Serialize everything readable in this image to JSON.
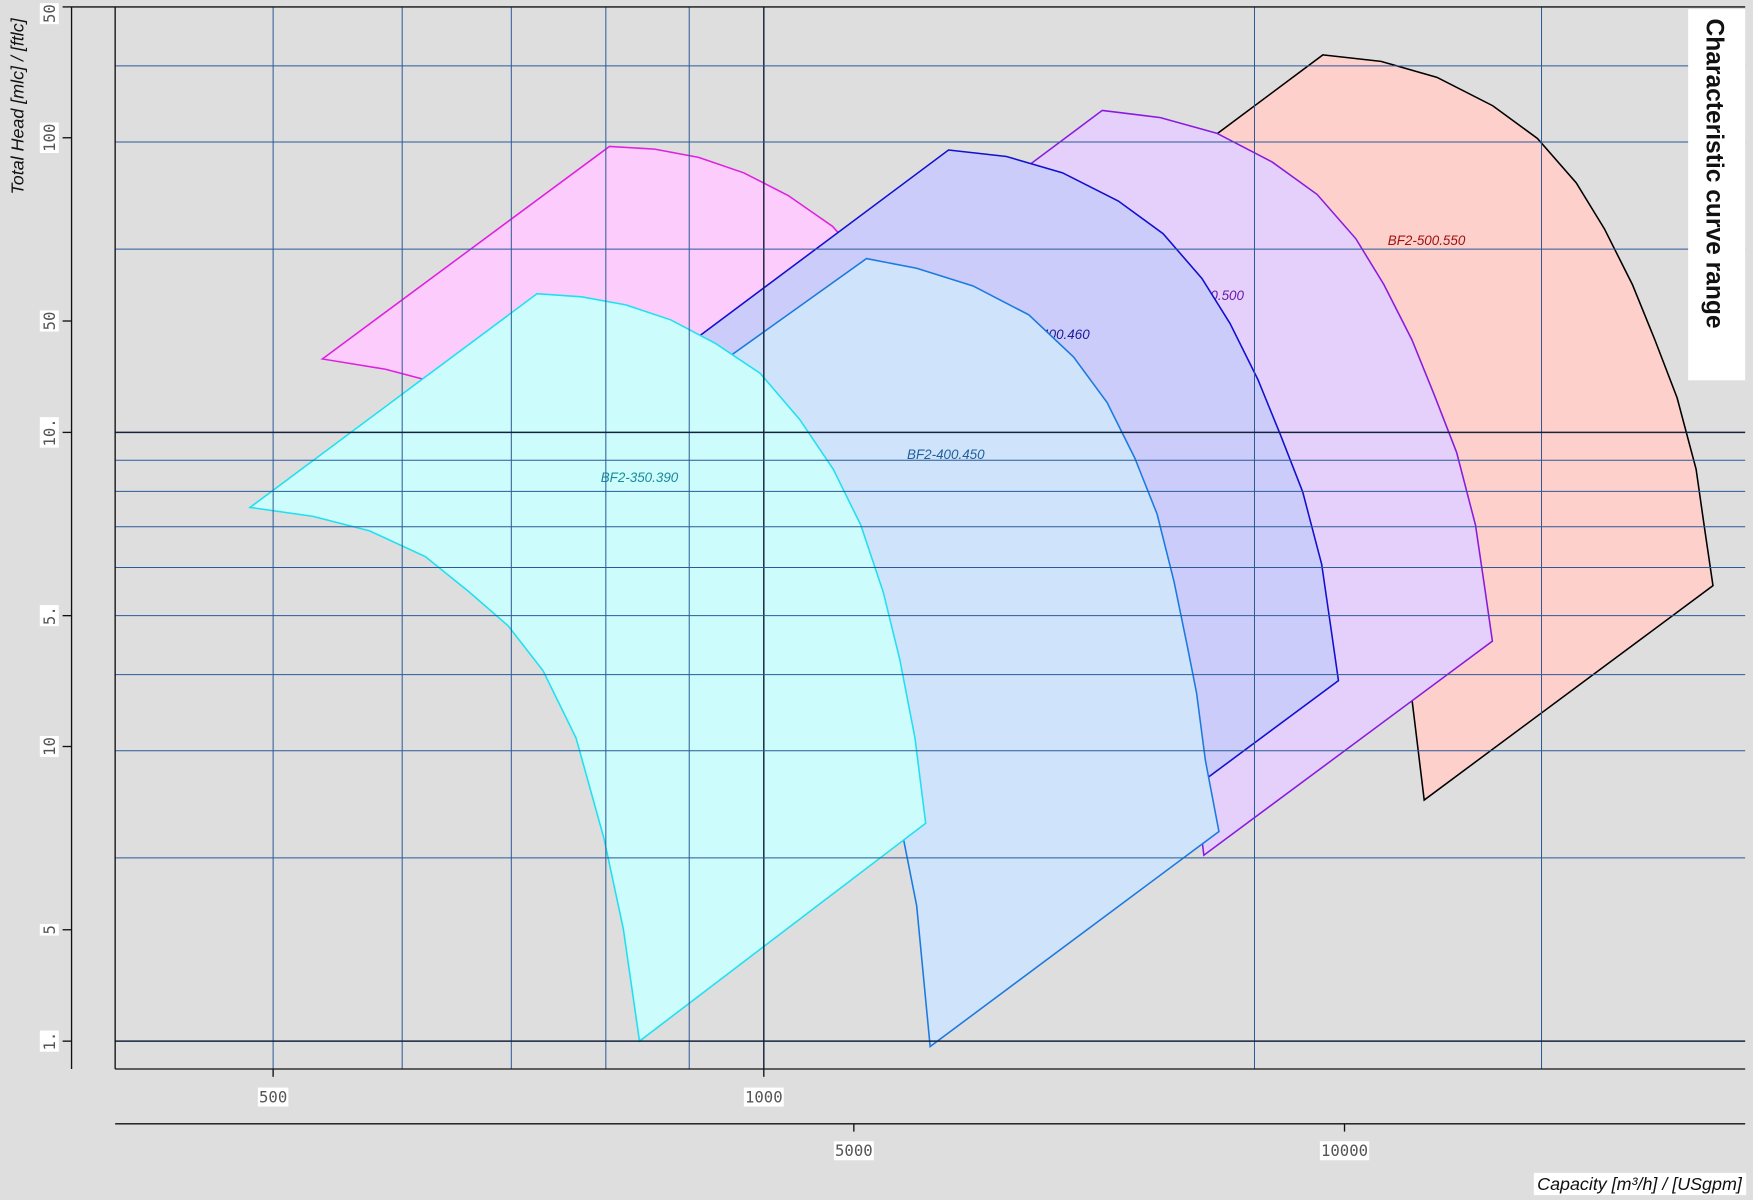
{
  "chart_data": {
    "type": "polygon",
    "title": "Characteristic curve range",
    "y_label": "Total Head [mlc] / [ftlc]",
    "x_label": "Capacity [m³/h] / [USgpm]",
    "log_x": true,
    "log_y": true,
    "grid": true,
    "xlim": [
      400,
      4000
    ],
    "xticks": [
      500,
      1000
    ],
    "x2lim": [
      1761.1,
      17611.5
    ],
    "x2ticks": [
      5000,
      10000
    ],
    "ylim": [
      0.9,
      50
    ],
    "yticks": [
      {
        "value": 1,
        "label": "1."
      },
      {
        "value": 5,
        "label": "5."
      },
      {
        "value": 10,
        "label": "10."
      },
      50
    ],
    "y2lim": [
      2.9528,
      164.04
    ],
    "y2ticks": [
      5,
      10,
      50,
      100
    ],
    "x_minor_grid": [
      600,
      700,
      800,
      900,
      2000,
      3000
    ],
    "y_minor_grid": [
      2,
      3,
      4,
      6,
      7,
      8,
      9,
      20,
      30,
      40
    ],
    "series": [
      {
        "name": "BF2-500.550",
        "color": "#000000",
        "fill": "#fdd0cc",
        "label_color": "#a01010",
        "x": [
          2203,
          2391,
          2588,
          2800,
          2983,
          3151,
          3279,
          3411,
          3521,
          3633,
          3732,
          3779,
          3822,
          2542,
          2498,
          2447,
          2372,
          2243,
          2106,
          1916,
          1743,
          1536,
          1397
        ],
        "y": [
          41.7,
          40.7,
          38.3,
          34.4,
          30.4,
          25.7,
          21.6,
          17.5,
          14.2,
          11.4,
          8.7,
          6.89,
          5.6,
          2.49,
          3.65,
          4.92,
          6.33,
          8.15,
          10.1,
          12.5,
          14.5,
          16.0,
          16.8
        ]
      },
      {
        "name": "BF2-450.500",
        "color": "#8a1ae0",
        "fill": "#e4d0fb",
        "label_color": "#6a1aaa",
        "x": [
          1613,
          1751,
          1896,
          2051,
          2185,
          2308,
          2401,
          2498,
          2579,
          2661,
          2733,
          2768,
          2799,
          1862,
          1830,
          1792,
          1738,
          1643,
          1543,
          1403,
          1277,
          1125,
          1023
        ],
        "y": [
          33.8,
          32.9,
          31.0,
          27.8,
          24.6,
          20.8,
          17.5,
          14.2,
          11.5,
          9.27,
          7.04,
          5.58,
          4.54,
          2.02,
          2.96,
          3.98,
          5.13,
          6.6,
          8.17,
          10.1,
          11.7,
          13.0,
          13.6
        ]
      },
      {
        "color": "#e020e0",
        "fill": "#fccdfc",
        "x": [
          536,
          804,
          857,
          912,
          972,
          1035,
          1102,
          1166,
          1222,
          1271,
          1312,
          1343,
          1372,
          1393,
          930,
          909,
          884,
          850,
          811,
          772,
          731,
          687,
          635,
          586
        ],
        "y": [
          13.2,
          29.5,
          29.2,
          28.3,
          26.7,
          24.5,
          21.8,
          18.4,
          15.2,
          12.3,
          9.54,
          7.39,
          5.51,
          3.99,
          1.75,
          2.67,
          3.76,
          5.51,
          7.1,
          8.41,
          9.54,
          10.9,
          12.0,
          12.7
        ]
      },
      {
        "name": "BF2-400.460",
        "color": "#1010d0",
        "fill": "#ccccfa",
        "label_color": "#1a1a9a",
        "x": [
          1298,
          1409,
          1525,
          1650,
          1758,
          1857,
          1932,
          2010,
          2075,
          2141,
          2199,
          2227,
          2252,
          1498,
          1472,
          1442,
          1398,
          1322,
          1241,
          1129,
          1027,
          905,
          823
        ],
        "y": [
          29.1,
          28.4,
          26.7,
          24.0,
          21.2,
          17.9,
          15.1,
          12.2,
          9.9,
          7.99,
          6.07,
          4.81,
          3.91,
          1.74,
          2.55,
          3.43,
          4.42,
          5.69,
          7.04,
          8.7,
          10.1,
          11.2,
          11.7
        ]
      },
      {
        "name": "BF2-400.450",
        "color": "#1a7ae0",
        "fill": "#cfe4fb",
        "label_color": "#1f5f9f",
        "x": [
          1156,
          1241,
          1344,
          1454,
          1549,
          1624,
          1689,
          1743,
          1785,
          1820,
          1843,
          1866,
          1902,
          1265,
          1241,
          1218,
          1166,
          1112,
          1060,
          1011,
          949,
          877,
          798,
          729
        ],
        "y": [
          19.3,
          18.6,
          17.4,
          15.6,
          13.3,
          11.2,
          9.07,
          7.34,
          5.69,
          4.42,
          3.73,
          2.89,
          2.21,
          0.98,
          1.67,
          2.15,
          3.15,
          4.06,
          4.81,
          5.46,
          6.2,
          6.75,
          7.19,
          7.99
        ]
      },
      {
        "name": "BF2-350.390",
        "color": "#20e0f0",
        "fill": "#ccfcfc",
        "label_color": "#1a8a9a",
        "x": [
          484,
          726,
          773,
          823,
          877,
          934,
          995,
          1052,
          1103,
          1147,
          1184,
          1212,
          1238,
          1257,
          839,
          820,
          798,
          767,
          732,
          697,
          660,
          620,
          573,
          529
        ],
        "y": [
          7.53,
          16.9,
          16.7,
          16.2,
          15.3,
          14.0,
          12.5,
          10.5,
          8.7,
          7.04,
          5.46,
          4.23,
          3.15,
          2.28,
          1.0,
          1.53,
          2.15,
          3.15,
          4.06,
          4.81,
          5.46,
          6.25,
          6.89,
          7.28
        ]
      }
    ]
  }
}
